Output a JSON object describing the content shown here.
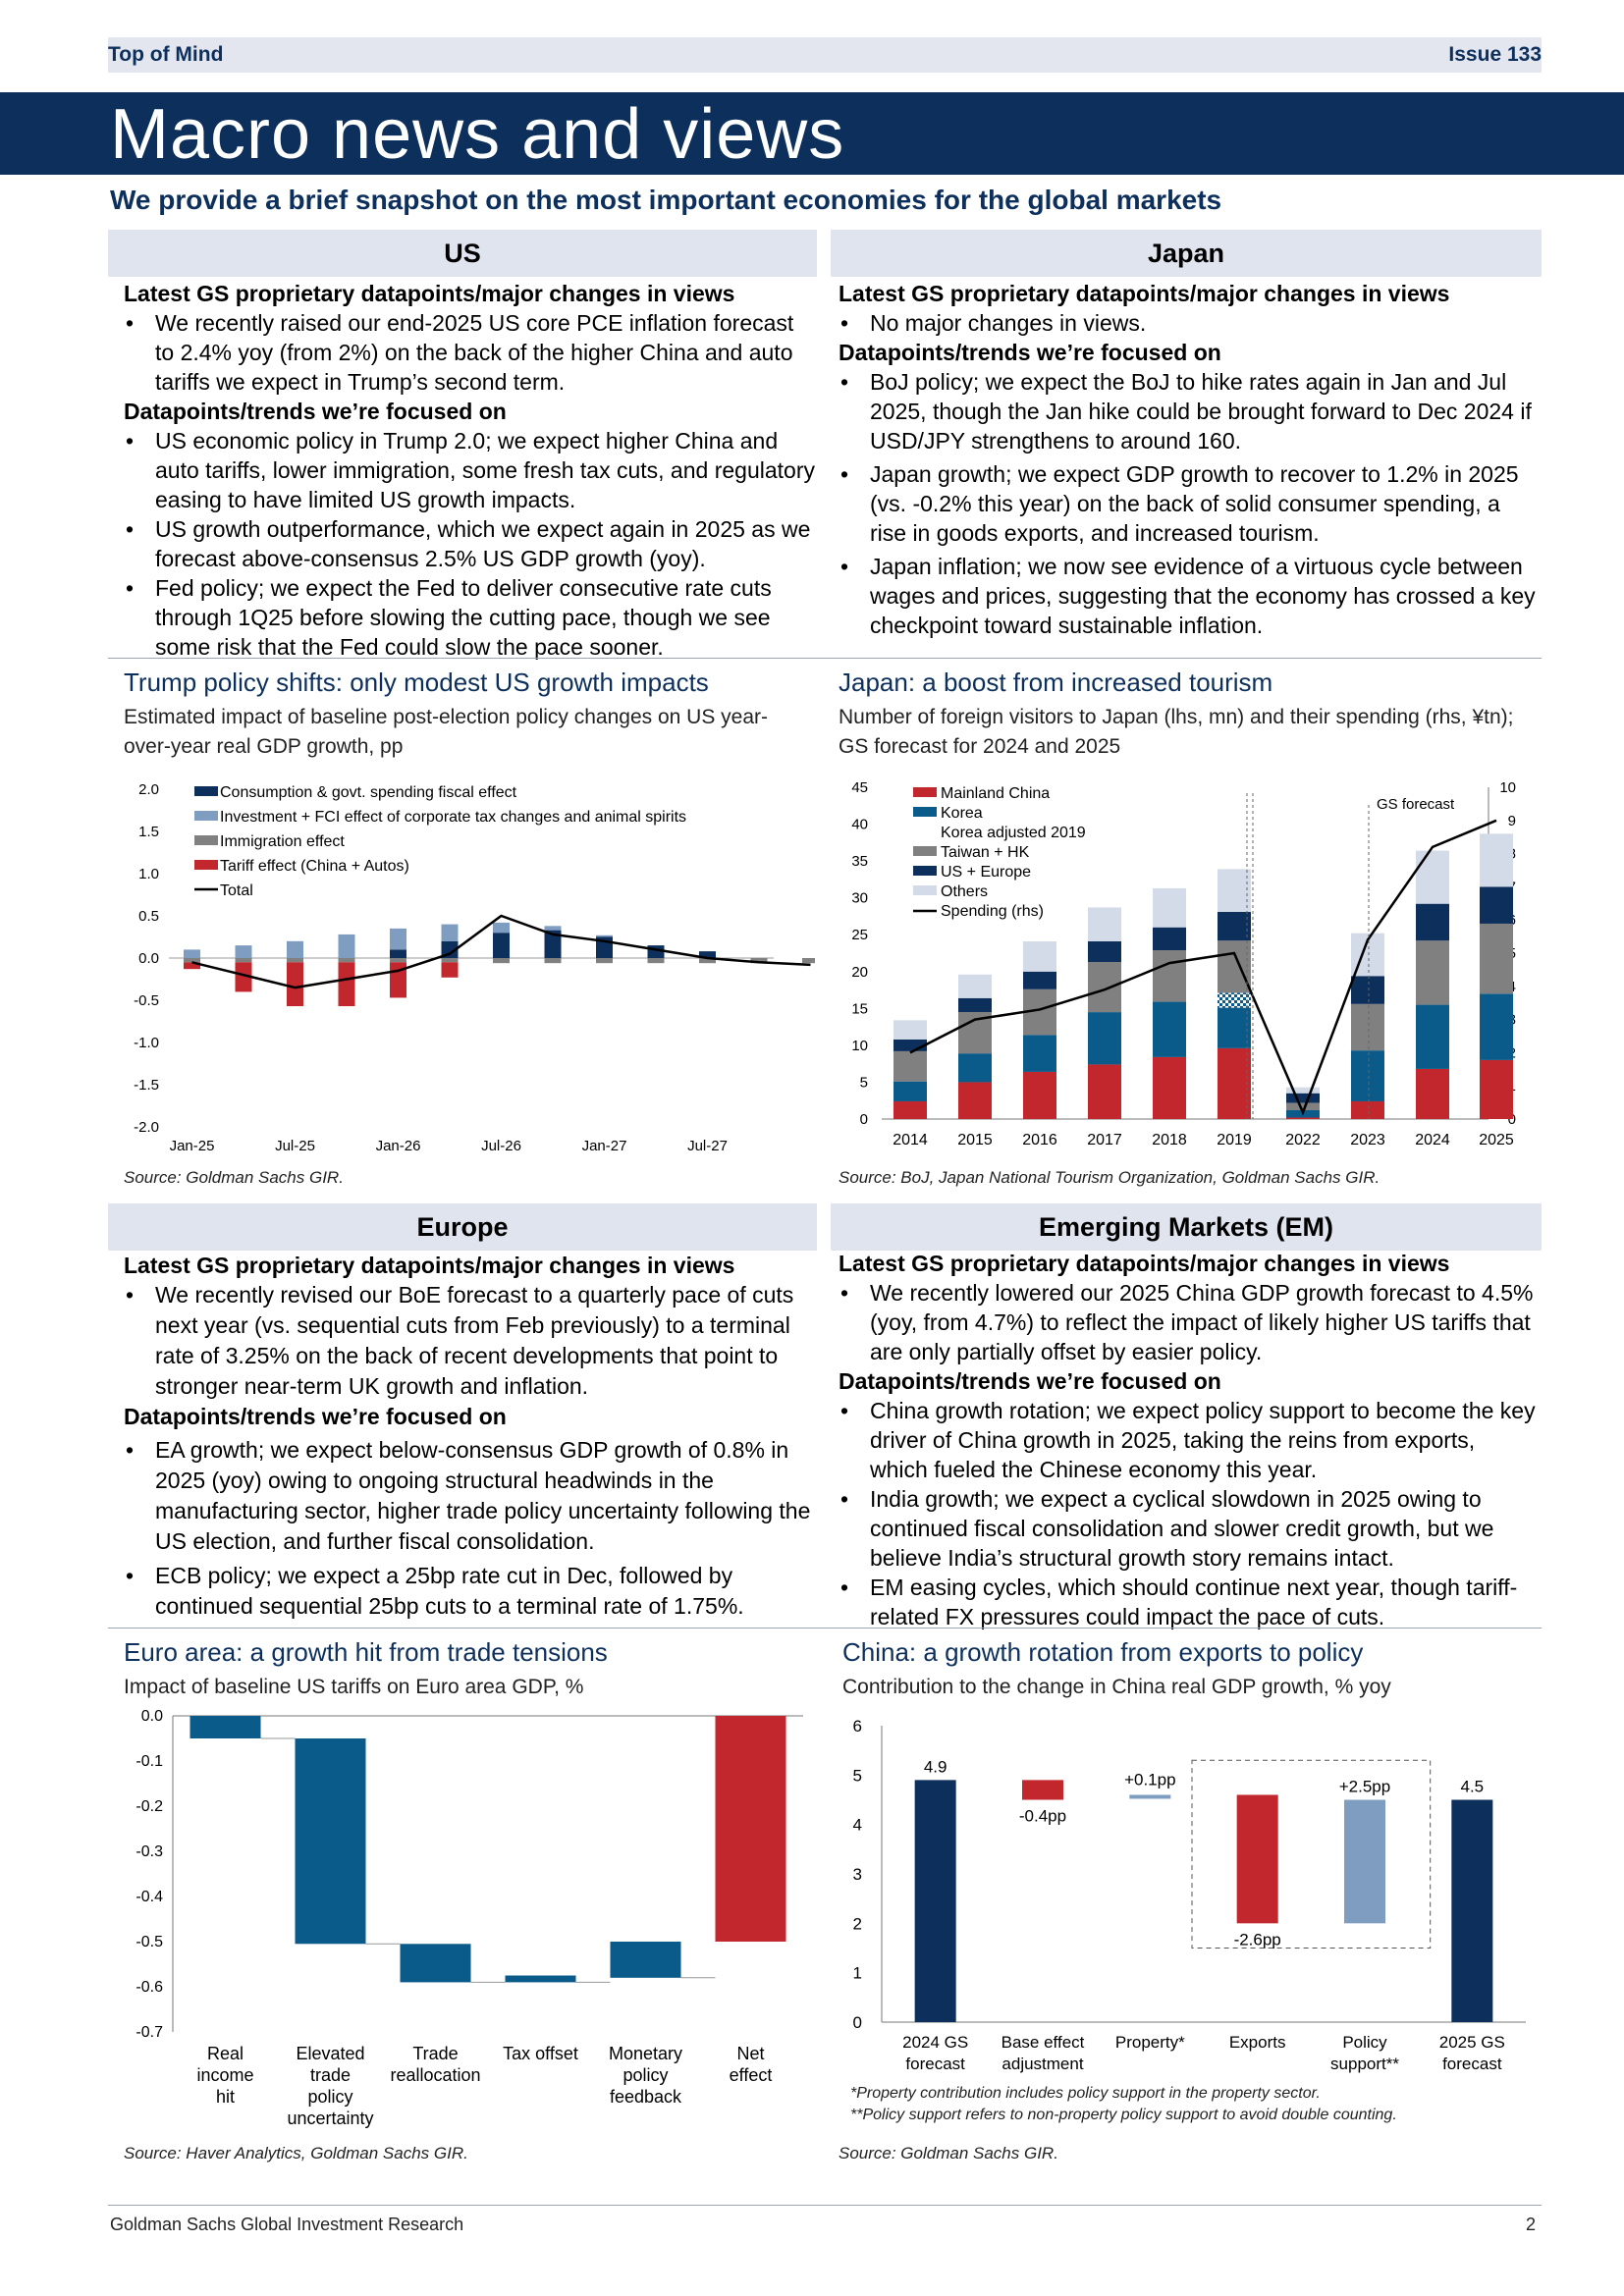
{
  "header": {
    "left": "Top of Mind",
    "right": "Issue 133"
  },
  "banner": "Macro news and views",
  "subtitle": "We provide a brief snapshot on the most important economies for the global markets",
  "sections": {
    "us": {
      "title": "US",
      "h1": "Latest GS proprietary datapoints/major changes in views",
      "b1": [
        "We recently raised our end-2025 US core PCE inflation forecast to 2.4% yoy (from 2%) on the back of the higher China and auto tariffs we expect in Trump’s second term."
      ],
      "h2": "Datapoints/trends we’re focused on",
      "b2": [
        "US economic policy in Trump 2.0; we expect higher China and auto tariffs, lower immigration, some fresh tax cuts, and regulatory easing to have limited US growth impacts.",
        "US growth outperformance, which we expect again in 2025 as we forecast above-consensus 2.5% US GDP growth (yoy).",
        "Fed policy; we expect the Fed to deliver consecutive rate cuts through 1Q25 before slowing the cutting pace, though we see some risk that the Fed could slow the pace sooner."
      ]
    },
    "japan": {
      "title": "Japan",
      "h1": "Latest GS proprietary datapoints/major changes in views",
      "b1": [
        "No major changes in views."
      ],
      "h2": "Datapoints/trends we’re focused on",
      "b2": [
        "BoJ policy; we expect the BoJ to hike rates again in Jan and Jul 2025, though the Jan hike could be brought forward to Dec 2024 if USD/JPY strengthens to around 160.",
        "Japan growth; we expect GDP growth to recover to 1.2% in 2025 (vs. -0.2% this year) on the back of solid consumer spending, a rise in goods exports, and increased tourism.",
        "Japan inflation; we now see evidence of a virtuous cycle between wages and prices, suggesting that the economy has crossed a key checkpoint toward sustainable inflation."
      ]
    },
    "europe": {
      "title": "Europe",
      "h1": "Latest GS proprietary datapoints/major changes in views",
      "b1": [
        "We recently revised our BoE forecast to a quarterly pace of cuts next year (vs. sequential cuts from Feb previously) to a terminal rate of 3.25% on the back of recent developments that point to stronger near-term UK growth and inflation."
      ],
      "h2": "Datapoints/trends we’re focused on",
      "b2": [
        "EA growth; we expect below-consensus GDP growth of 0.8% in 2025 (yoy) owing to ongoing structural headwinds in the manufacturing sector, higher trade policy uncertainty following the US election, and further fiscal consolidation.",
        "ECB policy; we expect a 25bp rate cut in Dec, followed by continued sequential 25bp cuts to a terminal rate of 1.75%."
      ]
    },
    "em": {
      "title": "Emerging Markets (EM)",
      "h1": "Latest GS proprietary datapoints/major changes in views",
      "b1": [
        "We recently lowered our 2025 China GDP growth forecast to 4.5% (yoy, from 4.7%) to reflect the impact of likely higher US tariffs that are only partially offset by easier policy."
      ],
      "h2": "Datapoints/trends we’re focused on",
      "b2": [
        "China growth rotation; we expect policy support to become the key driver of China growth in 2025, taking the reins from exports, which fueled the Chinese economy this year.",
        "India growth; we expect a cyclical slowdown in 2025 owing to continued fiscal consolidation and slower credit growth, but we believe India’s structural growth story remains intact.",
        "EM easing cycles, which should continue next year, though tariff-related FX pressures could impact the pace of cuts."
      ]
    }
  },
  "charts": {
    "us": {
      "title": "Trump policy shifts: only modest US growth impacts",
      "sub": "Estimated impact of baseline post-election policy changes on US year-over-year real GDP growth, pp",
      "source": "Source: Goldman Sachs GIR."
    },
    "japan": {
      "title": "Japan: a boost from increased tourism",
      "sub": "Number of foreign visitors to Japan (lhs, mn) and their spending (rhs, ¥tn); GS forecast for 2024 and 2025",
      "source": "Source:  BoJ, Japan National Tourism Organization, Goldman Sachs GIR.",
      "forecast_label": "GS forecast"
    },
    "euro": {
      "title": "Euro area: a growth hit from trade tensions",
      "sub": "Impact of baseline US tariffs on Euro area GDP, %",
      "source": "Source: Haver Analytics, Goldman Sachs GIR."
    },
    "china": {
      "title": "China: a growth rotation from exports to policy",
      "sub": "Contribution to the change in China real GDP growth, % yoy",
      "note1": "*Property contribution includes policy support in the property sector.",
      "note2": "**Policy support refers to non-property policy support to avoid double counting.",
      "source": "Source: Goldman Sachs GIR."
    }
  },
  "chart_data": [
    {
      "type": "bar",
      "id": "us",
      "stacked": true,
      "x_tick_labels": [
        "Jan-25",
        "Jul-25",
        "Jan-26",
        "Jul-26",
        "Jan-27",
        "Jul-27"
      ],
      "ylim": [
        -2.0,
        2.0
      ],
      "yticks": [
        "2.0",
        "1.5",
        "1.0",
        "0.5",
        "0.0",
        "-0.5",
        "-1.0",
        "-1.5",
        "-2.0"
      ],
      "colors": {
        "cons": "#0d2f5c",
        "inv": "#7f9dc1",
        "imm": "#808080",
        "tariff": "#c1272d",
        "total": "#000000"
      },
      "series": [
        {
          "name": "Consumption & govt. spending fiscal effect",
          "key": "cons",
          "values": [
            0,
            0,
            0,
            0,
            0.1,
            0.2,
            0.3,
            0.33,
            0.25,
            0.15,
            0.08,
            0,
            0
          ]
        },
        {
          "name": "Investment + FCI effect of corporate tax changes and animal spirits",
          "key": "inv",
          "values": [
            0.1,
            0.15,
            0.2,
            0.28,
            0.25,
            0.2,
            0.12,
            0.05,
            0.02,
            0,
            0,
            0,
            0
          ]
        },
        {
          "name": "Immigration effect",
          "key": "imm",
          "values": [
            -0.05,
            -0.05,
            -0.05,
            -0.05,
            -0.05,
            -0.05,
            -0.06,
            -0.06,
            -0.06,
            -0.06,
            -0.06,
            -0.06,
            -0.06
          ]
        },
        {
          "name": "Tariff effect (China + Autos)",
          "key": "tariff",
          "values": [
            -0.08,
            -0.35,
            -0.52,
            -0.52,
            -0.42,
            -0.18,
            0,
            0,
            0,
            0,
            0,
            0,
            0
          ]
        },
        {
          "name": "Total",
          "key": "total",
          "line": [
            -0.05,
            -0.2,
            -0.35,
            -0.25,
            -0.15,
            0.05,
            0.5,
            0.28,
            0.2,
            0.1,
            0,
            -0.05,
            -0.08
          ]
        }
      ]
    },
    {
      "type": "bar",
      "id": "japan",
      "stacked": true,
      "categories": [
        "2014",
        "2015",
        "2016",
        "2017",
        "2018",
        "2019",
        "2022",
        "2023",
        "2024",
        "2025"
      ],
      "ylim": [
        0,
        45
      ],
      "y2lim": [
        0,
        10
      ],
      "colors": {
        "china": "#c1272d",
        "korea": "#0a5a8a",
        "taiwan": "#808080",
        "useu": "#0d2f5c",
        "others": "#d3dbe8",
        "spending": "#000000"
      },
      "series": [
        {
          "name": "Mainland China",
          "key": "china",
          "values": [
            2.4,
            5.0,
            6.4,
            7.4,
            8.4,
            9.6,
            0.2,
            2.4,
            6.8,
            8.0
          ]
        },
        {
          "name": "Korea",
          "key": "korea",
          "values": [
            2.7,
            3.9,
            5.0,
            7.1,
            7.5,
            5.5,
            1.0,
            6.9,
            8.7,
            9.0
          ]
        },
        {
          "name": "Korea adjusted 2019",
          "key": "koreaadj",
          "values": [
            0,
            0,
            0,
            0,
            0,
            2.0,
            0,
            0,
            0,
            0
          ]
        },
        {
          "name": "Taiwan + HK",
          "key": "taiwan",
          "values": [
            4.1,
            5.6,
            6.2,
            6.8,
            7.0,
            7.1,
            1.0,
            6.3,
            8.7,
            9.5
          ]
        },
        {
          "name": "US + Europe",
          "key": "useu",
          "values": [
            1.6,
            1.9,
            2.4,
            2.8,
            3.1,
            3.9,
            1.3,
            3.8,
            5.0,
            5.0
          ]
        },
        {
          "name": "Others",
          "key": "others",
          "values": [
            2.6,
            3.2,
            4.1,
            4.6,
            5.3,
            5.8,
            0.8,
            5.8,
            7.2,
            7.2
          ]
        },
        {
          "name": "Spending (rhs)",
          "key": "spending",
          "line": [
            2.0,
            3.0,
            3.3,
            3.9,
            4.7,
            5.0,
            0.2,
            5.4,
            8.2,
            9.0
          ]
        }
      ]
    },
    {
      "type": "bar",
      "id": "euro",
      "categories": [
        [
          "Real",
          "income",
          "hit"
        ],
        [
          "Elevated",
          "trade",
          "policy",
          "uncertainty"
        ],
        [
          "Trade",
          "reallocation"
        ],
        [
          "Tax offset"
        ],
        [
          "Monetary",
          "policy",
          "feedback"
        ],
        [
          "Net",
          "effect"
        ]
      ],
      "waterfall_bars": [
        [
          0,
          -0.05
        ],
        [
          -0.05,
          -0.505
        ],
        [
          -0.505,
          -0.59
        ],
        [
          -0.575,
          -0.59
        ],
        [
          -0.5,
          -0.58
        ],
        [
          0,
          -0.5
        ]
      ],
      "colors": [
        "#0a5a8a",
        "#0a5a8a",
        "#0a5a8a",
        "#0a5a8a",
        "#0a5a8a",
        "#c1272d"
      ],
      "ylim": [
        -0.7,
        0.0
      ],
      "yticks": [
        "0.0",
        "-0.1",
        "-0.2",
        "-0.3",
        "-0.4",
        "-0.5",
        "-0.6",
        "-0.7"
      ]
    },
    {
      "type": "bar",
      "id": "china",
      "categories": [
        [
          "2024 GS",
          "forecast"
        ],
        [
          "Base effect",
          "adjustment"
        ],
        [
          "Property*"
        ],
        [
          "Exports"
        ],
        [
          "Policy",
          "support**"
        ],
        [
          "2025 GS",
          "forecast"
        ]
      ],
      "waterfall_bars": [
        [
          0,
          4.9
        ],
        [
          4.5,
          4.9
        ],
        [
          4.6,
          4.55
        ],
        [
          2.0,
          4.6
        ],
        [
          2.0,
          4.5
        ],
        [
          0,
          4.5
        ]
      ],
      "colors": [
        "#0d2f5c",
        "#c1272d",
        "#7f9dc1",
        "#c1272d",
        "#7f9dc1",
        "#0d2f5c"
      ],
      "labels": [
        "4.9",
        "-0.4pp",
        "+0.1pp",
        "-2.6pp",
        "+2.5pp",
        "4.5"
      ],
      "ylim": [
        0,
        6
      ],
      "yticks": [
        "6",
        "5",
        "4",
        "3",
        "2",
        "1",
        "0"
      ]
    }
  ],
  "footer": {
    "left": "Goldman Sachs Global Investment Research",
    "right": "2"
  }
}
